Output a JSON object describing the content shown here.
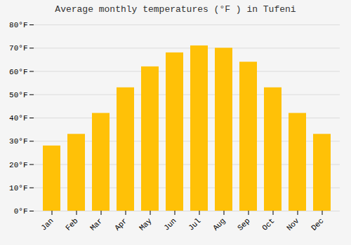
{
  "chart_data": {
    "type": "bar",
    "title": "Average monthly temperatures (°F ) in Tufeni",
    "categories": [
      "Jan",
      "Feb",
      "Mar",
      "Apr",
      "May",
      "Jun",
      "Jul",
      "Aug",
      "Sep",
      "Oct",
      "Nov",
      "Dec"
    ],
    "values": [
      28,
      33,
      42,
      53,
      62,
      68,
      71,
      70,
      64,
      53,
      42,
      33
    ],
    "color": "#FFC107",
    "ylim": [
      0,
      80
    ],
    "yticks": [
      {
        "value": 0,
        "label": "0°F"
      },
      {
        "value": 10,
        "label": "10°F"
      },
      {
        "value": 20,
        "label": "20°F"
      },
      {
        "value": 30,
        "label": "30°F"
      },
      {
        "value": 40,
        "label": "40°F"
      },
      {
        "value": 50,
        "label": "50°F"
      },
      {
        "value": 60,
        "label": "60°F"
      },
      {
        "value": 70,
        "label": "70°F"
      },
      {
        "value": 80,
        "label": "80°F"
      }
    ],
    "grid": true
  }
}
